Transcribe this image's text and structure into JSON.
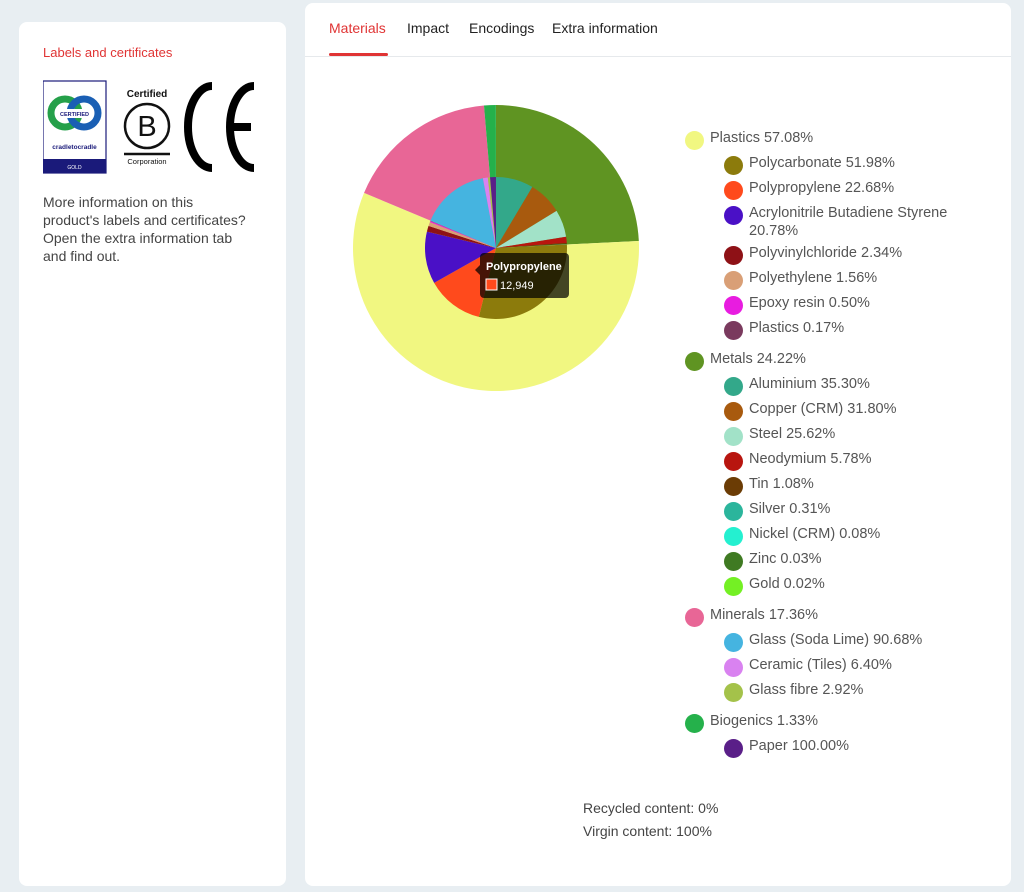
{
  "left_panel": {
    "section_title": "Labels and certificates",
    "logos": {
      "cradle": {
        "word1": "CERTIFIED",
        "word2": "cradletocradle",
        "word3": "GOLD",
        "icon": "cradle-to-cradle-logo"
      },
      "bcorp": {
        "word1": "Certified",
        "word2": "Corporation",
        "icon": "b-corp-logo"
      },
      "ce": {
        "mark": "CE",
        "icon": "ce-mark-logo"
      }
    },
    "info_text": "More information on this product's labels and certificates? Open the extra information tab and find out."
  },
  "tabs": [
    {
      "label": "Materials"
    },
    {
      "label": "Impact"
    },
    {
      "label": "Encodings"
    },
    {
      "label": "Extra information"
    }
  ],
  "tooltip": {
    "title": "Polypropylene",
    "value": "12,949",
    "color": "#ff4a1c"
  },
  "chart_data": {
    "type": "pie",
    "subtype": "two-level donut (sunburst)",
    "outer": [
      {
        "name": "Metals",
        "percent": 24.22,
        "color": "#5f9422"
      },
      {
        "name": "Plastics",
        "percent": 57.08,
        "color": "#f1f781"
      },
      {
        "name": "Minerals",
        "percent": 17.36,
        "color": "#e86696"
      },
      {
        "name": "Biogenics",
        "percent": 1.33,
        "color": "#25b14b"
      }
    ],
    "inner": [
      {
        "parent": "Metals",
        "name": "Aluminium",
        "percent": 35.3,
        "color": "#33a88a"
      },
      {
        "parent": "Metals",
        "name": "Copper (CRM)",
        "percent": 31.8,
        "color": "#a85a0e"
      },
      {
        "parent": "Metals",
        "name": "Steel",
        "percent": 25.62,
        "color": "#a2e2c8"
      },
      {
        "parent": "Metals",
        "name": "Neodymium",
        "percent": 5.78,
        "color": "#b8150f"
      },
      {
        "parent": "Metals",
        "name": "Tin",
        "percent": 1.08,
        "color": "#6b3c05"
      },
      {
        "parent": "Metals",
        "name": "Silver",
        "percent": 0.31,
        "color": "#2bb59c"
      },
      {
        "parent": "Metals",
        "name": "Nickel (CRM)",
        "percent": 0.08,
        "color": "#24f0d0"
      },
      {
        "parent": "Metals",
        "name": "Zinc",
        "percent": 0.03,
        "color": "#3f7a22"
      },
      {
        "parent": "Metals",
        "name": "Gold",
        "percent": 0.02,
        "color": "#74f024"
      },
      {
        "parent": "Plastics",
        "name": "Polycarbonate",
        "percent": 51.98,
        "color": "#8c7b0c"
      },
      {
        "parent": "Plastics",
        "name": "Polypropylene",
        "percent": 22.68,
        "color": "#ff4a1c"
      },
      {
        "parent": "Plastics",
        "name": "Acrylonitrile Butadiene Styrene",
        "percent": 20.78,
        "color": "#4a10c6"
      },
      {
        "parent": "Plastics",
        "name": "Polyvinylchloride",
        "percent": 2.34,
        "color": "#8e1116"
      },
      {
        "parent": "Plastics",
        "name": "Polyethylene",
        "percent": 1.56,
        "color": "#d99f76"
      },
      {
        "parent": "Plastics",
        "name": "Epoxy resin",
        "percent": 0.5,
        "color": "#e81ce0"
      },
      {
        "parent": "Plastics",
        "name": "Plastics",
        "percent": 0.17,
        "color": "#7a3a5e"
      },
      {
        "parent": "Minerals",
        "name": "Glass (Soda Lime)",
        "percent": 90.68,
        "color": "#45b4e0"
      },
      {
        "parent": "Minerals",
        "name": "Ceramic (Tiles)",
        "percent": 6.4,
        "color": "#d982f0"
      },
      {
        "parent": "Minerals",
        "name": "Glass fibre",
        "percent": 2.92,
        "color": "#a4c24a"
      },
      {
        "parent": "Biogenics",
        "name": "Paper",
        "percent": 100.0,
        "color": "#5a1f88"
      }
    ],
    "legend_order": [
      "Plastics",
      "Metals",
      "Minerals",
      "Biogenics"
    ],
    "legend_position": "right"
  },
  "legend": [
    {
      "label": "Plastics 57.08%",
      "color": "#f1f781",
      "children": [
        {
          "label": "Polycarbonate 51.98%",
          "color": "#8c7b0c"
        },
        {
          "label": "Polypropylene 22.68%",
          "color": "#ff4a1c"
        },
        {
          "label": "Acrylonitrile Butadiene Styrene 20.78%",
          "color": "#4a10c6"
        },
        {
          "label": "Polyvinylchloride 2.34%",
          "color": "#8e1116"
        },
        {
          "label": "Polyethylene 1.56%",
          "color": "#d99f76"
        },
        {
          "label": "Epoxy resin 0.50%",
          "color": "#e81ce0"
        },
        {
          "label": "Plastics 0.17%",
          "color": "#7a3a5e"
        }
      ]
    },
    {
      "label": "Metals 24.22%",
      "color": "#5f9422",
      "children": [
        {
          "label": "Aluminium 35.30%",
          "color": "#33a88a"
        },
        {
          "label": "Copper (CRM) 31.80%",
          "color": "#a85a0e"
        },
        {
          "label": "Steel 25.62%",
          "color": "#a2e2c8"
        },
        {
          "label": "Neodymium 5.78%",
          "color": "#b8150f"
        },
        {
          "label": "Tin 1.08%",
          "color": "#6b3c05"
        },
        {
          "label": "Silver 0.31%",
          "color": "#2bb59c"
        },
        {
          "label": "Nickel (CRM) 0.08%",
          "color": "#24f0d0"
        },
        {
          "label": "Zinc 0.03%",
          "color": "#3f7a22"
        },
        {
          "label": "Gold 0.02%",
          "color": "#74f024"
        }
      ]
    },
    {
      "label": "Minerals 17.36%",
      "color": "#e86696",
      "children": [
        {
          "label": "Glass (Soda Lime) 90.68%",
          "color": "#45b4e0"
        },
        {
          "label": "Ceramic (Tiles) 6.40%",
          "color": "#d982f0"
        },
        {
          "label": "Glass fibre 2.92%",
          "color": "#a4c24a"
        }
      ]
    },
    {
      "label": "Biogenics 1.33%",
      "color": "#25b14b",
      "children": [
        {
          "label": "Paper 100.00%",
          "color": "#5a1f88"
        }
      ]
    }
  ],
  "content_info": {
    "recycled": "Recycled content: 0%",
    "virgin": "Virgin content: 100%"
  },
  "colors": {
    "accent": "#e03434",
    "background": "#e8eef2"
  }
}
